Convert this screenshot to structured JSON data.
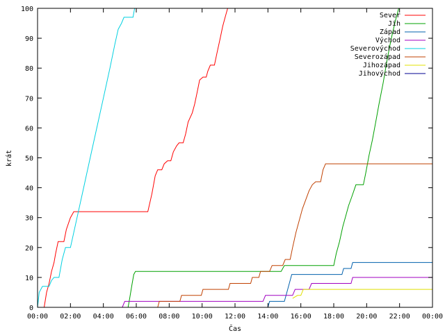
{
  "chart_data": {
    "type": "line",
    "xlabel": "Čas",
    "ylabel": "krát",
    "xlim": [
      0,
      24
    ],
    "ylim": [
      0,
      100
    ],
    "x_tick_labels": [
      "00:00",
      "02:00",
      "04:00",
      "06:00",
      "08:00",
      "10:00",
      "12:00",
      "14:00",
      "16:00",
      "18:00",
      "20:00",
      "22:00",
      "00:00"
    ],
    "x_tick_values": [
      0,
      2,
      4,
      6,
      8,
      10,
      12,
      14,
      16,
      18,
      20,
      22,
      24
    ],
    "y_tick_values": [
      0,
      10,
      20,
      30,
      40,
      50,
      60,
      70,
      80,
      90,
      100
    ],
    "grid": false,
    "legend_position": "top-right",
    "series": [
      {
        "name": "Sever",
        "color": "#ff0000",
        "points": [
          [
            0.4,
            0
          ],
          [
            0.55,
            5
          ],
          [
            0.7,
            8
          ],
          [
            0.85,
            12
          ],
          [
            1.0,
            15
          ],
          [
            1.1,
            18
          ],
          [
            1.25,
            22
          ],
          [
            1.6,
            22
          ],
          [
            1.75,
            26
          ],
          [
            2.0,
            30
          ],
          [
            2.2,
            32
          ],
          [
            6.7,
            32
          ],
          [
            6.95,
            38
          ],
          [
            7.15,
            44
          ],
          [
            7.3,
            46
          ],
          [
            7.55,
            46
          ],
          [
            7.7,
            48
          ],
          [
            7.9,
            49
          ],
          [
            8.1,
            49
          ],
          [
            8.25,
            52
          ],
          [
            8.45,
            54
          ],
          [
            8.6,
            55
          ],
          [
            8.85,
            55
          ],
          [
            9.0,
            58
          ],
          [
            9.15,
            62
          ],
          [
            9.4,
            65
          ],
          [
            9.55,
            68
          ],
          [
            9.7,
            72
          ],
          [
            9.85,
            76
          ],
          [
            10.05,
            77
          ],
          [
            10.25,
            77
          ],
          [
            10.35,
            79
          ],
          [
            10.5,
            81
          ],
          [
            10.75,
            81
          ],
          [
            10.9,
            85
          ],
          [
            11.1,
            90
          ],
          [
            11.25,
            94
          ],
          [
            11.4,
            97
          ],
          [
            11.55,
            100
          ]
        ]
      },
      {
        "name": "Jih",
        "color": "#00a000",
        "points": [
          [
            5.5,
            0
          ],
          [
            5.6,
            3
          ],
          [
            5.75,
            8
          ],
          [
            5.85,
            11
          ],
          [
            5.95,
            12
          ],
          [
            14.8,
            12
          ],
          [
            14.9,
            13
          ],
          [
            15.0,
            14
          ],
          [
            18.0,
            14
          ],
          [
            18.15,
            18
          ],
          [
            18.35,
            22
          ],
          [
            18.55,
            27
          ],
          [
            18.75,
            31
          ],
          [
            18.9,
            34
          ],
          [
            19.1,
            37
          ],
          [
            19.35,
            41
          ],
          [
            19.8,
            41
          ],
          [
            19.95,
            45
          ],
          [
            20.15,
            51
          ],
          [
            20.35,
            56
          ],
          [
            20.55,
            62
          ],
          [
            20.75,
            68
          ],
          [
            21.0,
            75
          ],
          [
            21.25,
            83
          ],
          [
            21.5,
            90
          ],
          [
            21.75,
            96
          ],
          [
            21.95,
            100
          ]
        ]
      },
      {
        "name": "Západ",
        "color": "#0060ad",
        "points": [
          [
            14.0,
            0
          ],
          [
            14.1,
            2
          ],
          [
            15.0,
            2
          ],
          [
            15.15,
            5
          ],
          [
            15.3,
            8
          ],
          [
            15.45,
            11
          ],
          [
            18.5,
            11
          ],
          [
            18.6,
            13
          ],
          [
            19.05,
            13
          ],
          [
            19.15,
            15
          ],
          [
            24,
            15
          ]
        ]
      },
      {
        "name": "Východ",
        "color": "#a000c0",
        "points": [
          [
            5.15,
            0
          ],
          [
            5.3,
            2
          ],
          [
            13.7,
            2
          ],
          [
            13.85,
            4
          ],
          [
            15.5,
            4
          ],
          [
            15.65,
            6
          ],
          [
            16.5,
            6
          ],
          [
            16.65,
            8
          ],
          [
            19.05,
            8
          ],
          [
            19.15,
            10
          ],
          [
            24,
            10
          ]
        ]
      },
      {
        "name": "Severovýchod",
        "color": "#00d0e0",
        "points": [
          [
            0,
            0
          ],
          [
            0.1,
            5
          ],
          [
            0.3,
            7
          ],
          [
            0.7,
            7
          ],
          [
            0.85,
            9
          ],
          [
            1.0,
            10
          ],
          [
            1.3,
            10
          ],
          [
            1.5,
            16
          ],
          [
            1.7,
            20
          ],
          [
            2.0,
            20
          ],
          [
            2.4,
            30
          ],
          [
            2.8,
            40
          ],
          [
            3.2,
            50
          ],
          [
            3.6,
            60
          ],
          [
            4.0,
            70
          ],
          [
            4.4,
            80
          ],
          [
            4.7,
            88
          ],
          [
            4.9,
            93
          ],
          [
            5.1,
            95
          ],
          [
            5.25,
            97
          ],
          [
            5.8,
            97
          ],
          [
            5.9,
            100
          ]
        ]
      },
      {
        "name": "Severozápad",
        "color": "#c04000",
        "points": [
          [
            7.3,
            0
          ],
          [
            7.4,
            2
          ],
          [
            8.65,
            2
          ],
          [
            8.75,
            4
          ],
          [
            9.95,
            4
          ],
          [
            10.05,
            6
          ],
          [
            11.6,
            6
          ],
          [
            11.7,
            8
          ],
          [
            12.95,
            8
          ],
          [
            13.05,
            10
          ],
          [
            13.45,
            10
          ],
          [
            13.55,
            12
          ],
          [
            14.1,
            12
          ],
          [
            14.25,
            14
          ],
          [
            14.9,
            14
          ],
          [
            15.05,
            16
          ],
          [
            15.35,
            16
          ],
          [
            15.5,
            20
          ],
          [
            15.7,
            25
          ],
          [
            15.9,
            29
          ],
          [
            16.1,
            33
          ],
          [
            16.3,
            36
          ],
          [
            16.5,
            39
          ],
          [
            16.7,
            41
          ],
          [
            16.9,
            42
          ],
          [
            17.2,
            42
          ],
          [
            17.35,
            46
          ],
          [
            17.5,
            48
          ],
          [
            24,
            48
          ]
        ]
      },
      {
        "name": "Jihozápad",
        "color": "#e0e000",
        "points": [
          [
            15.5,
            3
          ],
          [
            15.8,
            4
          ],
          [
            16.0,
            4
          ],
          [
            16.15,
            6
          ],
          [
            24,
            6
          ]
        ]
      },
      {
        "name": "Jihovýchod",
        "color": "#000090",
        "points": []
      }
    ]
  }
}
